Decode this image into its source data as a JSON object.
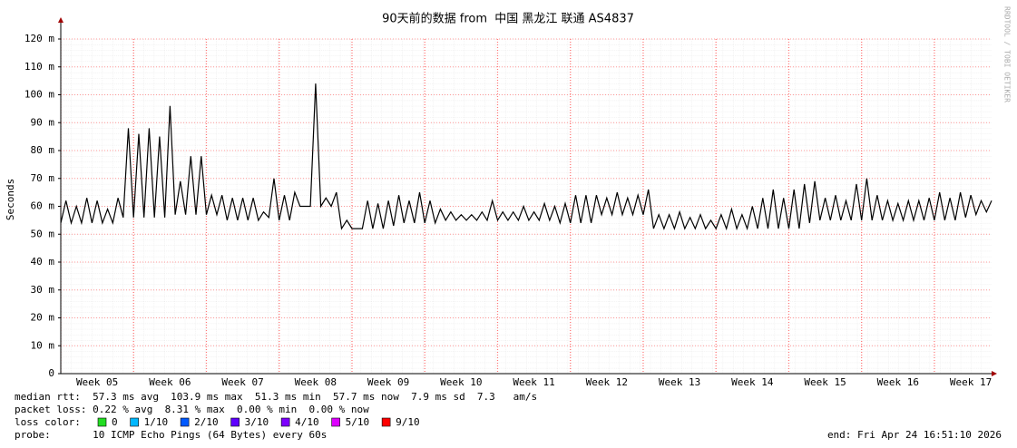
{
  "chart_data": {
    "type": "line",
    "title": "90天前的数据 from  中国 黑龙江 联通 AS4837",
    "y_label": "Seconds",
    "side_text": "RRDTOOL / TOBI OETIKER",
    "color": "#000000",
    "grid": true,
    "ylim": [
      0,
      120
    ],
    "yticks": [
      0,
      {
        "value": 10,
        "label": "10 m"
      },
      {
        "value": 20,
        "label": "20 m"
      },
      {
        "value": 30,
        "label": "30 m"
      },
      {
        "value": 40,
        "label": "40 m"
      },
      {
        "value": 50,
        "label": "50 m"
      },
      {
        "value": 60,
        "label": "60 m"
      },
      {
        "value": 70,
        "label": "70 m"
      },
      {
        "value": 80,
        "label": "80 m"
      },
      {
        "value": 90,
        "label": "90 m"
      },
      {
        "value": 100,
        "label": "100 m"
      },
      {
        "value": 110,
        "label": "110 m"
      },
      {
        "value": 120,
        "label": "120 m"
      }
    ],
    "categories": [
      null,
      null,
      null,
      null,
      null,
      null,
      null,
      "Week 05",
      null,
      null,
      null,
      null,
      null,
      null,
      null,
      null,
      null,
      null,
      null,
      null,
      null,
      "Week 06",
      null,
      null,
      null,
      null,
      null,
      null,
      null,
      null,
      null,
      null,
      null,
      null,
      null,
      "Week 07",
      null,
      null,
      null,
      null,
      null,
      null,
      null,
      null,
      null,
      null,
      null,
      null,
      null,
      "Week 08",
      null,
      null,
      null,
      null,
      null,
      null,
      null,
      null,
      null,
      null,
      null,
      null,
      null,
      "Week 09",
      null,
      null,
      null,
      null,
      null,
      null,
      null,
      null,
      null,
      null,
      null,
      null,
      null,
      "Week 10",
      null,
      null,
      null,
      null,
      null,
      null,
      null,
      null,
      null,
      null,
      null,
      null,
      null,
      "Week 11",
      null,
      null,
      null,
      null,
      null,
      null,
      null,
      null,
      null,
      null,
      null,
      null,
      null,
      "Week 12",
      null,
      null,
      null,
      null,
      null,
      null,
      null,
      null,
      null,
      null,
      null,
      null,
      null,
      "Week 13",
      null,
      null,
      null,
      null,
      null,
      null,
      null,
      null,
      null,
      null,
      null,
      null,
      null,
      "Week 14",
      null,
      null,
      null,
      null,
      null,
      null,
      null,
      null,
      null,
      null,
      null,
      null,
      null,
      "Week 15",
      null,
      null,
      null,
      null,
      null,
      null,
      null,
      null,
      null,
      null,
      null,
      null,
      null,
      "Week 16",
      null,
      null,
      null,
      null,
      null,
      null,
      null,
      null,
      null,
      null,
      null,
      null,
      null,
      "Week 17",
      null,
      null,
      null,
      null
    ],
    "values": [
      54,
      62,
      54,
      60,
      54,
      63,
      54,
      62,
      54,
      59,
      54,
      63,
      56,
      88,
      56,
      86,
      56,
      88,
      56,
      85,
      56,
      96,
      57,
      69,
      57,
      78,
      57,
      78,
      57,
      64,
      57,
      64,
      55,
      63,
      55,
      63,
      55,
      63,
      55,
      58,
      56,
      70,
      55,
      64,
      55,
      65,
      60,
      60,
      60,
      104,
      60,
      63,
      60,
      65,
      52,
      55,
      52,
      52,
      52,
      62,
      52,
      61,
      52,
      62,
      53,
      64,
      54,
      62,
      54,
      65,
      54,
      62,
      54,
      59,
      55,
      58,
      55,
      57,
      55,
      57,
      55,
      58,
      55,
      62,
      55,
      58,
      55,
      58,
      55,
      60,
      55,
      58,
      55,
      61,
      55,
      60,
      54,
      61,
      54,
      64,
      54,
      64,
      54,
      64,
      57,
      63,
      57,
      65,
      57,
      63,
      57,
      64,
      57,
      66,
      52,
      57,
      52,
      57,
      52,
      58,
      52,
      56,
      52,
      57,
      52,
      55,
      52,
      57,
      52,
      59,
      52,
      57,
      52,
      60,
      52,
      63,
      52,
      66,
      52,
      63,
      52,
      66,
      52,
      68,
      54,
      69,
      55,
      63,
      55,
      64,
      55,
      62,
      55,
      68,
      55,
      70,
      55,
      64,
      55,
      62,
      55,
      61,
      55,
      62,
      55,
      62,
      55,
      63,
      55,
      65,
      55,
      63,
      55,
      65,
      56,
      64,
      57,
      62,
      58,
      62
    ]
  },
  "stats": {
    "median_rtt": "median rtt:  57.3 ms avg  103.9 ms max  51.3 ms min  57.7 ms now  7.9 ms sd  7.3   am/s",
    "packet_loss": "packet loss: 0.22 % avg  8.31 % max  0.00 % min  0.00 % now",
    "loss_color_label": "loss color:",
    "loss_colors": [
      {
        "label": "0",
        "color": "#22dd22"
      },
      {
        "label": "1/10",
        "color": "#00b8ff"
      },
      {
        "label": "2/10",
        "color": "#0059ff"
      },
      {
        "label": "3/10",
        "color": "#5e00ff"
      },
      {
        "label": "4/10",
        "color": "#7e00ff"
      },
      {
        "label": "5/10",
        "color": "#dd00ff"
      },
      {
        "label": "9/10",
        "color": "#ff0000"
      }
    ],
    "probe": "probe:       10 ICMP Echo Pings (64 Bytes) every 60s",
    "end": "end: Fri Apr 24 16:51:10 2026"
  }
}
